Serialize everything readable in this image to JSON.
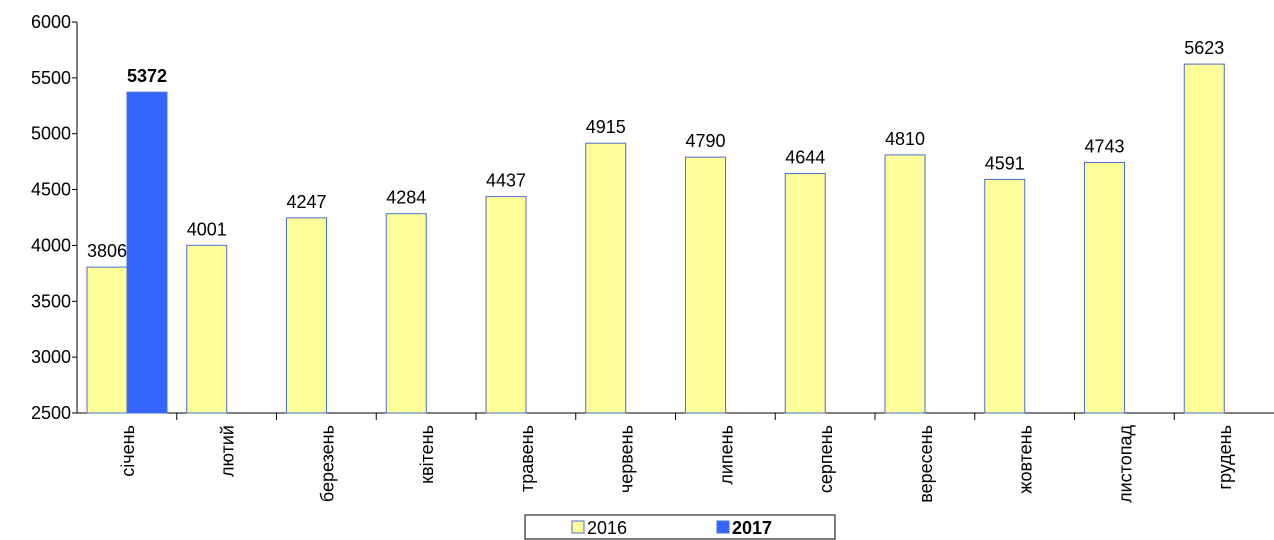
{
  "chart_data": {
    "type": "bar",
    "categories": [
      "січень",
      "лютий",
      "березень",
      "квітень",
      "травень",
      "червень",
      "липень",
      "серпень",
      "вересень",
      "жовтень",
      "листопад",
      "грудень"
    ],
    "series": [
      {
        "name": "2016",
        "color": "#ffff99",
        "values": [
          3806,
          4001,
          4247,
          4284,
          4437,
          4915,
          4790,
          4644,
          4810,
          4591,
          4743,
          5623
        ]
      },
      {
        "name": "2017",
        "color": "#3366ff",
        "values": [
          5372,
          null,
          null,
          null,
          null,
          null,
          null,
          null,
          null,
          null,
          null,
          null
        ]
      }
    ],
    "ylim": [
      2500,
      6000
    ],
    "yticks": [
      2500,
      3000,
      3500,
      4000,
      4500,
      5000,
      5500,
      6000
    ],
    "grid": false,
    "legend": "bottom"
  }
}
